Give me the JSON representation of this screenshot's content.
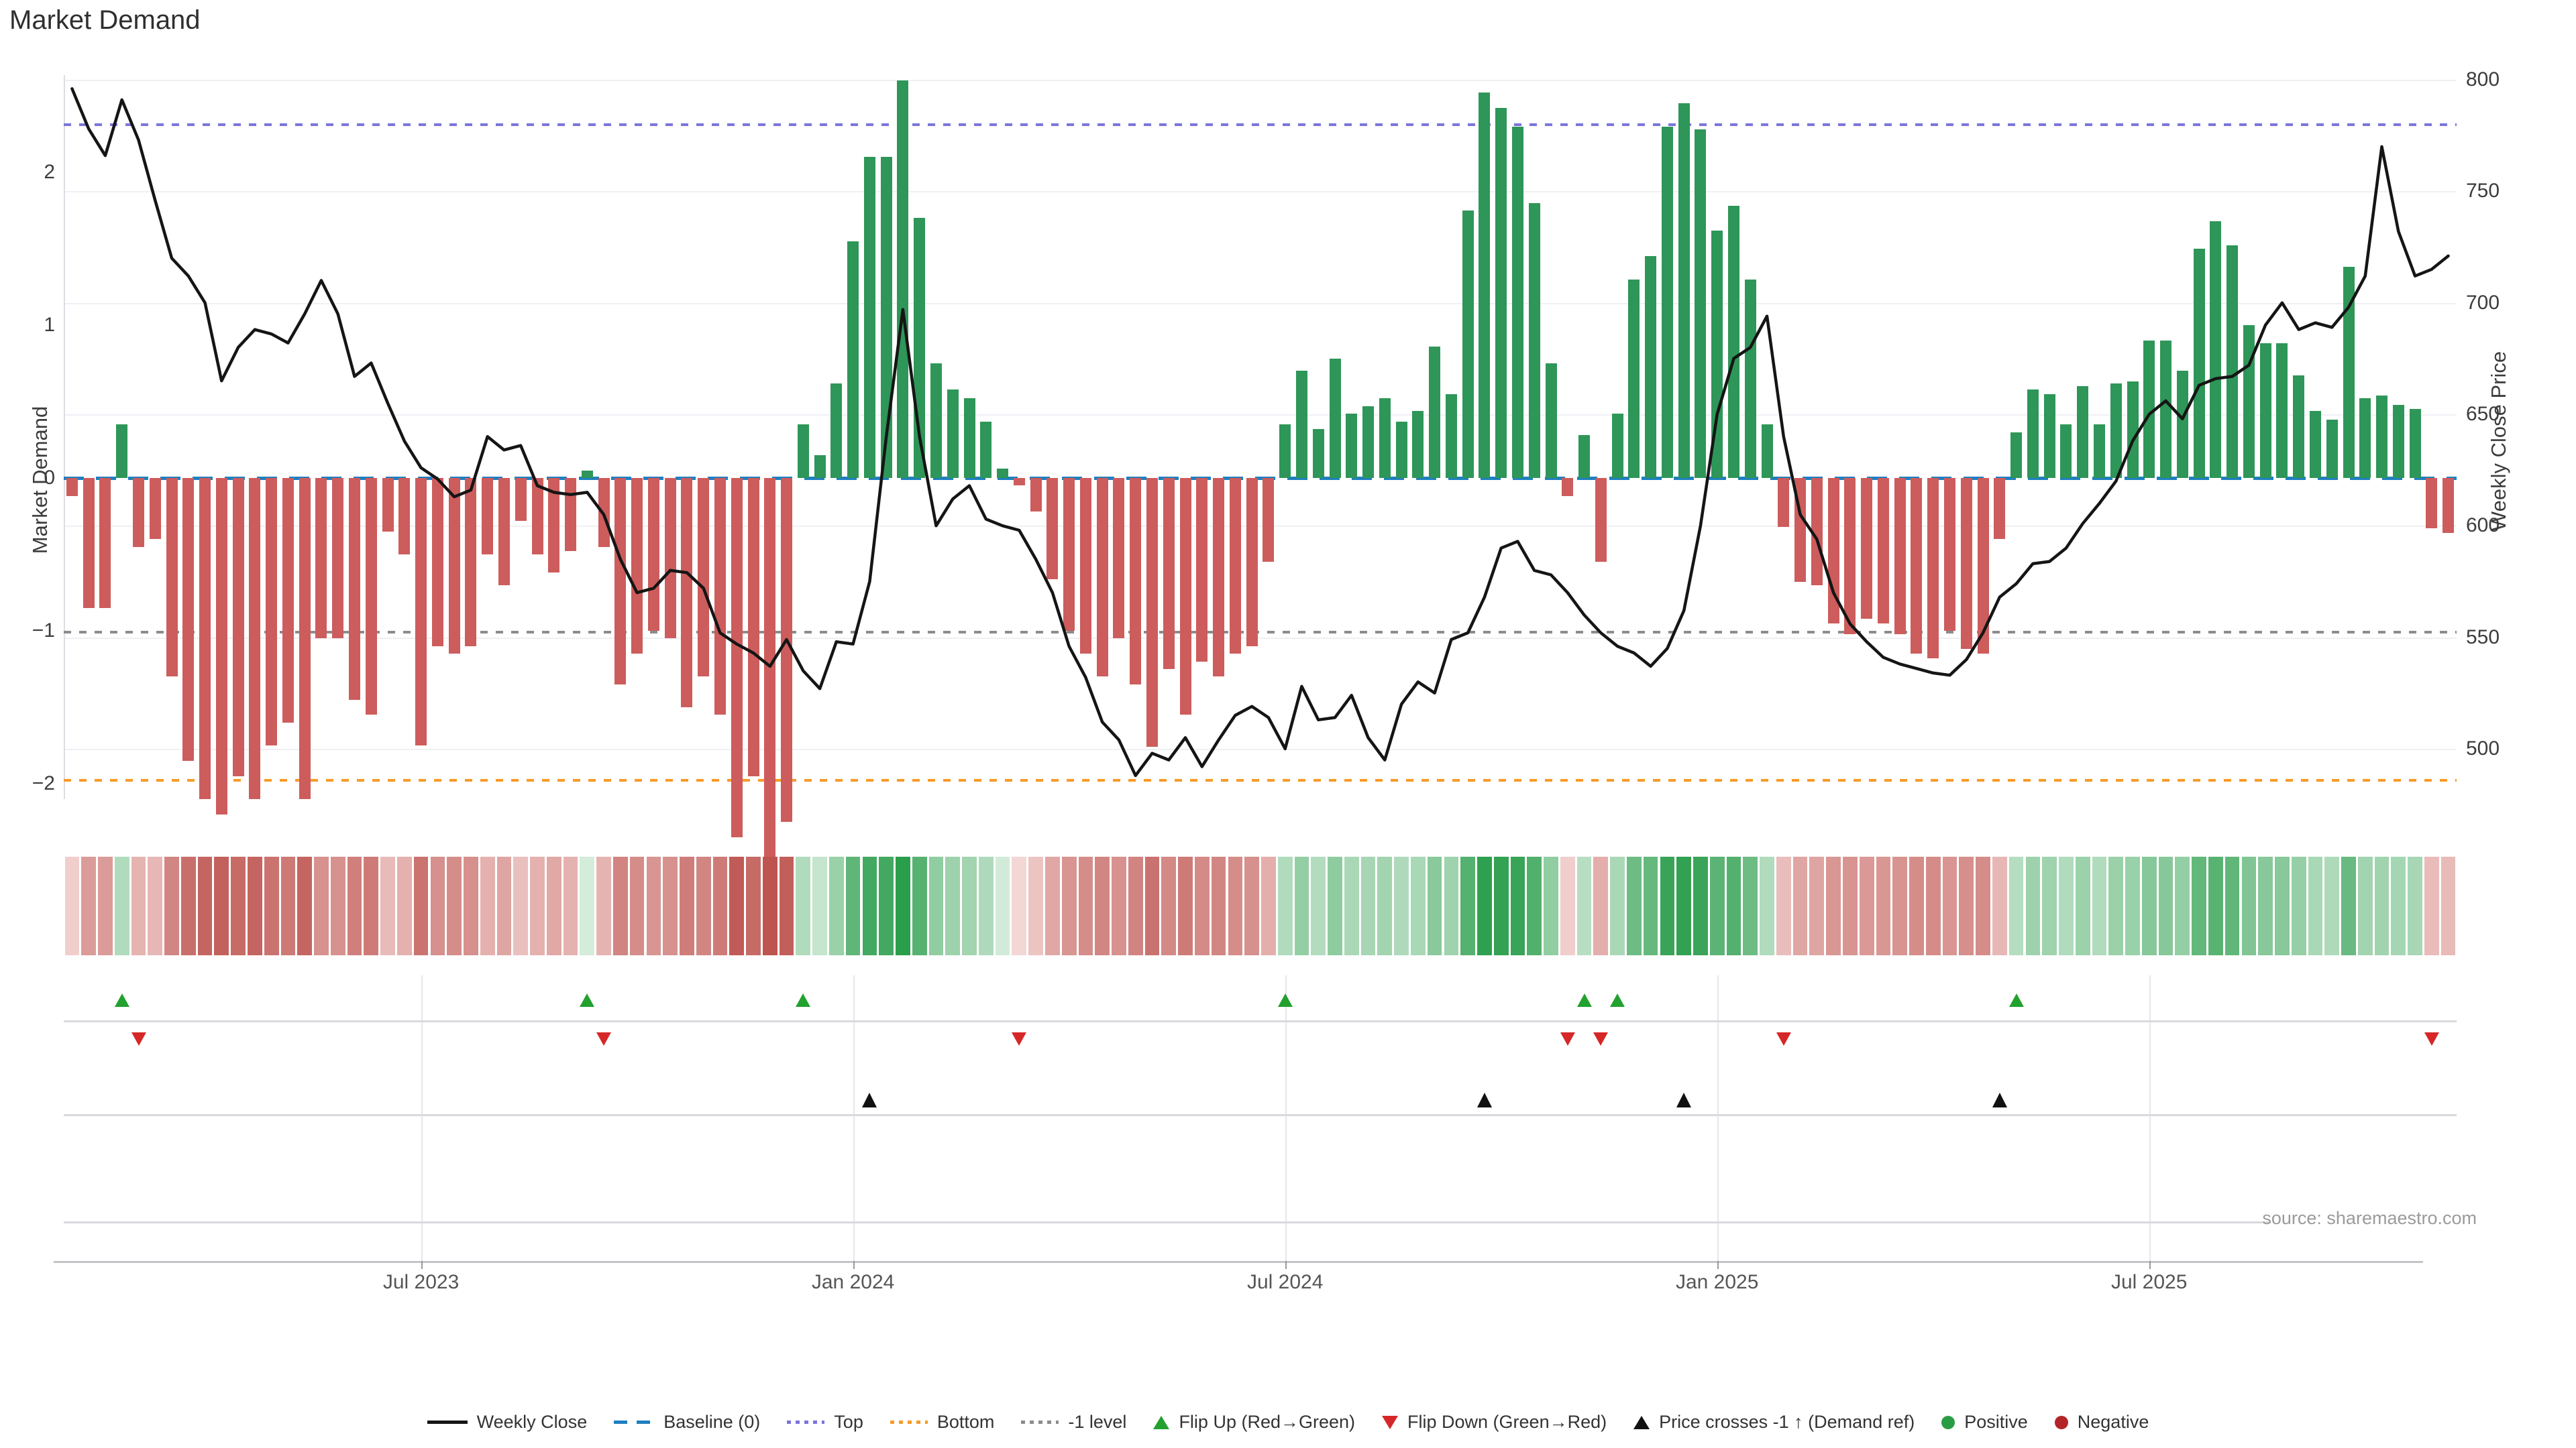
{
  "title": "Market Demand",
  "source": "source: sharemaestro.com",
  "left_axis": {
    "title": "Market Demand",
    "ticks": [
      {
        "label": "2",
        "value": 2
      },
      {
        "label": "1",
        "value": 1
      },
      {
        "label": "0",
        "value": 0
      },
      {
        "label": "−1",
        "value": -1
      },
      {
        "label": "−2",
        "value": -2
      }
    ]
  },
  "right_axis": {
    "title": "Weekly Close Price",
    "ticks": [
      {
        "label": "800",
        "value": 800
      },
      {
        "label": "750",
        "value": 750
      },
      {
        "label": "700",
        "value": 700
      },
      {
        "label": "650",
        "value": 650
      },
      {
        "label": "600",
        "value": 600
      },
      {
        "label": "550",
        "value": 550
      },
      {
        "label": "500",
        "value": 500
      }
    ]
  },
  "x_axis": {
    "labels": [
      {
        "text": "Jul 2023",
        "week": 22
      },
      {
        "text": "Jan 2024",
        "week": 48
      },
      {
        "text": "Jul 2024",
        "week": 74
      },
      {
        "text": "Jan 2025",
        "week": 100
      },
      {
        "text": "Jul 2025",
        "week": 126
      }
    ]
  },
  "legend": {
    "items": [
      {
        "icon": "line",
        "color": "#151515",
        "label": "Weekly Close"
      },
      {
        "icon": "dashes",
        "color": "#1f7fc0",
        "label": "Baseline (0)"
      },
      {
        "icon": "dots",
        "color": "#7b74dd",
        "label": "Top"
      },
      {
        "icon": "dots",
        "color": "#f79b28",
        "label": "Bottom"
      },
      {
        "icon": "dots",
        "color": "#8c8c8c",
        "label": "-1 level"
      },
      {
        "icon": "tri-up",
        "color": "#22a12e",
        "label": "Flip Up (Red→Green)"
      },
      {
        "icon": "tri-down",
        "color": "#d62728",
        "label": "Flip Down (Green→Red)"
      },
      {
        "icon": "tri-up",
        "color": "#111111",
        "label": "Price crosses -1 ↑ (Demand ref)"
      },
      {
        "icon": "circle",
        "color": "#2a9d44",
        "label": "Positive"
      },
      {
        "icon": "circle",
        "color": "#b22426",
        "label": "Negative"
      }
    ]
  },
  "colors": {
    "bar_positive": "#2e9658",
    "bar_negative": "#cd5c5c",
    "price_line": "#151515",
    "baseline": "#1f7fc0",
    "top_level": "#7b74dd",
    "bottom_level": "#f79b28",
    "minus_one_level": "#8c8c8c",
    "flip_up": "#22a12e",
    "flip_down": "#d62728",
    "price_cross": "#111111"
  },
  "chart_data": {
    "type": "combo",
    "x_weeks": 144,
    "series": [
      {
        "name": "Market Demand",
        "type": "bar",
        "axis": "left",
        "values": [
          -0.12,
          -0.85,
          -0.85,
          0.35,
          -0.45,
          -0.4,
          -1.3,
          -1.85,
          -2.1,
          -2.2,
          -1.95,
          -2.1,
          -1.75,
          -1.6,
          -2.1,
          -1.05,
          -1.05,
          -1.45,
          -1.55,
          -0.35,
          -0.5,
          -1.75,
          -1.1,
          -1.15,
          -1.1,
          -0.5,
          -0.7,
          -0.28,
          -0.5,
          -0.62,
          -0.48,
          0.05,
          -0.45,
          -1.35,
          -1.15,
          -1.0,
          -1.05,
          -1.5,
          -1.3,
          -1.55,
          -2.35,
          -1.95,
          -2.55,
          -2.25,
          0.35,
          0.15,
          0.62,
          1.55,
          2.1,
          2.1,
          2.6,
          1.7,
          0.75,
          0.58,
          0.52,
          0.37,
          0.06,
          -0.05,
          -0.22,
          -0.66,
          -1.0,
          -1.15,
          -1.3,
          -1.05,
          -1.35,
          -1.76,
          -1.25,
          -1.55,
          -1.2,
          -1.3,
          -1.15,
          -1.1,
          -0.55,
          0.35,
          0.7,
          0.32,
          0.78,
          0.42,
          0.47,
          0.52,
          0.37,
          0.44,
          0.86,
          0.55,
          1.75,
          2.52,
          2.42,
          2.3,
          1.8,
          0.75,
          -0.12,
          0.28,
          -0.55,
          0.42,
          1.3,
          1.45,
          2.3,
          2.45,
          2.28,
          1.62,
          1.78,
          1.3,
          0.35,
          -0.32,
          -0.68,
          -0.7,
          -0.95,
          -1.02,
          -0.92,
          -0.95,
          -1.02,
          -1.15,
          -1.18,
          -1.0,
          -1.12,
          -1.15,
          -0.4,
          0.3,
          0.58,
          0.55,
          0.35,
          0.6,
          0.35,
          0.62,
          0.63,
          0.9,
          0.9,
          0.7,
          1.5,
          1.68,
          1.52,
          1.0,
          0.88,
          0.88,
          0.67,
          0.44,
          0.38,
          1.38,
          0.52,
          0.54,
          0.48,
          0.45,
          -0.33,
          -0.36
        ]
      },
      {
        "name": "Weekly Close",
        "type": "line",
        "axis": "right",
        "values": [
          796,
          778,
          766,
          791,
          773,
          746,
          720,
          712,
          700,
          665,
          680,
          688,
          686,
          682,
          695,
          710,
          695,
          667,
          673,
          655,
          638,
          626,
          621,
          613,
          616,
          640,
          634,
          636,
          618,
          615,
          614,
          615,
          605,
          585,
          570,
          572,
          580,
          579,
          572,
          552,
          547,
          543,
          537,
          549,
          535,
          527,
          548,
          547,
          575,
          640,
          697,
          640,
          600,
          612,
          618,
          603,
          600,
          598,
          585,
          570,
          546,
          532,
          512,
          504,
          488,
          498,
          495,
          505,
          492,
          504,
          515,
          519,
          514,
          500,
          528,
          513,
          514,
          524,
          505,
          495,
          520,
          530,
          525,
          549,
          552,
          568,
          590,
          593,
          580,
          578,
          570,
          560,
          552,
          546,
          543,
          537,
          545,
          562,
          600,
          650,
          675,
          680,
          694,
          640,
          605,
          594,
          570,
          556,
          548,
          541,
          538,
          536,
          534,
          533,
          540,
          552,
          568,
          574,
          583,
          584,
          590,
          601,
          610,
          620,
          638,
          650,
          656,
          648,
          663,
          666,
          667,
          672,
          690,
          700,
          688,
          691,
          689,
          698,
          712,
          770,
          732,
          712,
          715,
          721
        ]
      }
    ],
    "levels": {
      "baseline": 0,
      "top": 2.32,
      "bottom": -1.97,
      "minus_one": -1
    },
    "markers": {
      "flip_up_weeks": [
        4,
        32,
        45,
        74,
        92,
        94,
        118
      ],
      "flip_down_weeks": [
        5,
        33,
        58,
        91,
        93,
        104,
        143
      ],
      "price_cross_weeks": [
        49,
        86,
        98,
        117
      ]
    },
    "left_axis_range": [
      -2.6,
      2.7
    ],
    "right_axis_range": [
      470,
      805
    ],
    "grid": "horizontal-price-ticks",
    "legend_position": "bottom-center"
  }
}
